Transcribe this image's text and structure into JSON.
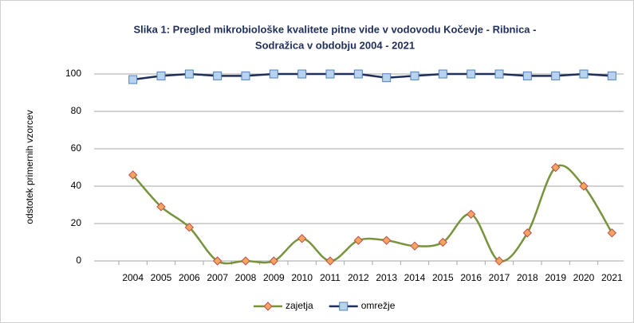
{
  "chart_data": {
    "type": "line",
    "title": [
      "Slika 1: Pregled mikrobiološke kvalitete pitne vide v vodovodu Kočevje - Ribnica -",
      "Sodražica v obdobju 2004 - 2021"
    ],
    "y_label": "odstotek primernih vzorcev",
    "categories": [
      "2004",
      "2005",
      "2006",
      "2007",
      "2008",
      "2009",
      "2010",
      "2011",
      "2012",
      "2013",
      "2014",
      "2015",
      "2016",
      "2017",
      "2018",
      "2019",
      "2020",
      "2021"
    ],
    "series": [
      {
        "name": "zajetja",
        "color": "#77933c",
        "marker": "diamond",
        "marker_fill": "#f4a460",
        "marker_stroke": "#c0504d",
        "smooth": true,
        "values": [
          46,
          29,
          18,
          0,
          0,
          0,
          12,
          0,
          11,
          11,
          8,
          10,
          25,
          0,
          15,
          50,
          40,
          15
        ]
      },
      {
        "name": "omrežje",
        "color": "#1f2f5a",
        "marker": "square",
        "marker_fill": "#b9d3ee",
        "marker_stroke": "#4f81bd",
        "smooth": false,
        "values": [
          97,
          99,
          100,
          99,
          99,
          100,
          100,
          100,
          100,
          98,
          99,
          100,
          100,
          100,
          99,
          99,
          100,
          99
        ]
      }
    ],
    "ylim": [
      0,
      100
    ],
    "yticks": [
      0,
      20,
      40,
      60,
      80,
      100
    ],
    "grid": true,
    "legend": "bottom"
  }
}
